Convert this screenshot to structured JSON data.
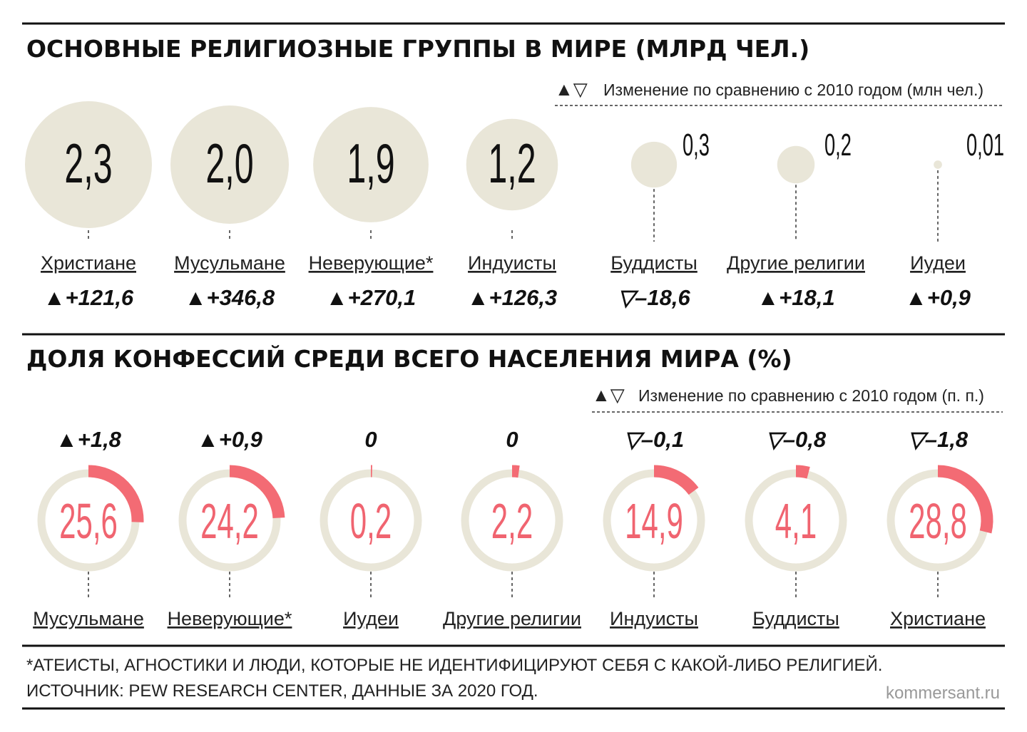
{
  "colors": {
    "bubble": "#e9e6d8",
    "ring_track": "#e9e6d8",
    "ring_value": "#f36b74",
    "percent_text": "#f06470",
    "text": "#111111"
  },
  "top": {
    "title": "ОСНОВНЫЕ РЕЛИГИОЗНЫЕ ГРУППЫ В МИРЕ (МЛРД ЧЕЛ.)",
    "legend_symbols": "▲▽",
    "legend_text": "Изменение по сравнению с 2010 годом (млн чел.)"
  },
  "bottom": {
    "title": "ДОЛЯ КОНФЕССИЙ СРЕДИ ВСЕГО НАСЕЛЕНИЯ МИРА (%)",
    "legend_symbols": "▲▽",
    "legend_text": "Изменение по сравнению с 2010 годом (п. п.)"
  },
  "chart_data": [
    {
      "type": "bubble",
      "title": "ОСНОВНЫЕ РЕЛИГИОЗНЫЕ ГРУППЫ В МИРЕ (МЛРД ЧЕЛ.)",
      "unit": "млрд чел.",
      "change_unit": "млн чел.",
      "items": [
        {
          "label": "Христиане",
          "value": 2.3,
          "value_text": "2,3",
          "change": 121.6,
          "change_text": "▲+121,6"
        },
        {
          "label": "Мусульмане",
          "value": 2.0,
          "value_text": "2,0",
          "change": 346.8,
          "change_text": "▲+346,8"
        },
        {
          "label": "Неверующие*",
          "value": 1.9,
          "value_text": "1,9",
          "change": 270.1,
          "change_text": "▲+270,1"
        },
        {
          "label": "Индуисты",
          "value": 1.2,
          "value_text": "1,2",
          "change": 126.3,
          "change_text": "▲+126,3"
        },
        {
          "label": "Буддисты",
          "value": 0.3,
          "value_text": "0,3",
          "change": -18.6,
          "change_text": "▽–18,6"
        },
        {
          "label": "Другие религии",
          "value": 0.2,
          "value_text": "0,2",
          "change": 18.1,
          "change_text": "▲+18,1"
        },
        {
          "label": "Иудеи",
          "value": 0.01,
          "value_text": "0,01",
          "change": 0.9,
          "change_text": "▲+0,9"
        }
      ]
    },
    {
      "type": "donut",
      "title": "ДОЛЯ КОНФЕССИЙ СРЕДИ ВСЕГО НАСЕЛЕНИЯ МИРА (%)",
      "unit": "%",
      "change_unit": "п. п.",
      "items": [
        {
          "label": "Мусульмане",
          "value": 25.6,
          "value_text": "25,6",
          "change": 1.8,
          "change_text": "▲+1,8"
        },
        {
          "label": "Неверующие*",
          "value": 24.2,
          "value_text": "24,2",
          "change": 0.9,
          "change_text": "▲+0,9"
        },
        {
          "label": "Иудеи",
          "value": 0.2,
          "value_text": "0,2",
          "change": 0,
          "change_text": "0"
        },
        {
          "label": "Другие религии",
          "value": 2.2,
          "value_text": "2,2",
          "change": 0,
          "change_text": "0"
        },
        {
          "label": "Индуисты",
          "value": 14.9,
          "value_text": "14,9",
          "change": -0.1,
          "change_text": "▽–0,1"
        },
        {
          "label": "Буддисты",
          "value": 4.1,
          "value_text": "4,1",
          "change": -0.8,
          "change_text": "▽–0,8"
        },
        {
          "label": "Христиане",
          "value": 28.8,
          "value_text": "28,8",
          "change": -1.8,
          "change_text": "▽–1,8"
        }
      ]
    }
  ],
  "footer": {
    "note": "*АТЕИСТЫ, АГНОСТИКИ И ЛЮДИ, КОТОРЫЕ НЕ ИДЕНТИФИЦИРУЮТ СЕБЯ С КАКОЙ-ЛИБО РЕЛИГИЕЙ.",
    "source": "ИСТОЧНИК: PEW RESEARCH CENTER, ДАННЫЕ ЗА 2020 ГОД.",
    "site": "kommersant.ru"
  }
}
